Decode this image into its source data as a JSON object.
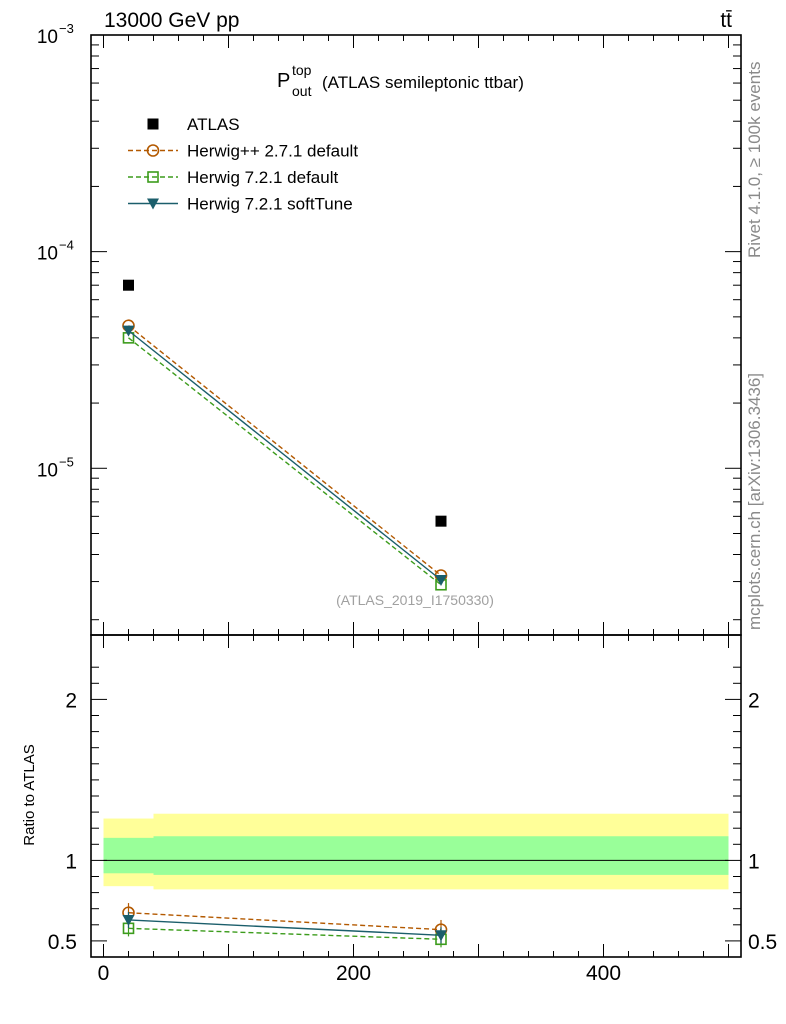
{
  "chart_data": [
    {
      "type": "scatter",
      "panel": "main",
      "title": "(ATLAS semileptonic ttbar)",
      "observable": {
        "base": "P",
        "sup": "top",
        "sub": "out"
      },
      "header_left": "13000 GeV pp",
      "header_right": "tt̄",
      "watermark": "(ATLAS_2019_I1750330)",
      "yscale": "log",
      "ylim": [
        1.7e-06,
        0.001
      ],
      "xlim": [
        -10,
        510
      ],
      "ytick_labels": [
        {
          "value": 0.001,
          "base": "10",
          "exp": "−3"
        },
        {
          "value": 0.0001,
          "base": "10",
          "exp": "−4"
        },
        {
          "value": 1e-05,
          "base": "10",
          "exp": "−5"
        }
      ],
      "series": [
        {
          "name": "ATLAS",
          "marker": "square-filled",
          "color": "#000000",
          "line": "none",
          "x": [
            20,
            270
          ],
          "y": [
            7e-05,
            5.7e-06
          ]
        },
        {
          "name": "Herwig++ 2.7.1 default",
          "marker": "circle-open",
          "color": "#b35900",
          "line": "dashed",
          "x": [
            20,
            270
          ],
          "y": [
            4.55e-05,
            3.2e-06
          ]
        },
        {
          "name": "Herwig 7.2.1 default",
          "marker": "square-open",
          "color": "#3c9c1c",
          "line": "dashed",
          "x": [
            20,
            270
          ],
          "y": [
            4e-05,
            2.9e-06
          ]
        },
        {
          "name": "Herwig 7.2.1 softTune",
          "marker": "triangle-down-filled",
          "color": "#1b5e6b",
          "line": "solid",
          "x": [
            20,
            270
          ],
          "y": [
            4.32e-05,
            3.05e-06
          ]
        }
      ]
    },
    {
      "type": "scatter",
      "panel": "ratio",
      "ylabel": "Ratio to ATLAS",
      "xlim": [
        -10,
        510
      ],
      "ylim": [
        0.4,
        2.4
      ],
      "xticks": [
        0,
        200,
        400
      ],
      "yticks": [
        0.5,
        1,
        2
      ],
      "bands": {
        "bins": [
          [
            0,
            40
          ],
          [
            40,
            500
          ]
        ],
        "outer": {
          "color": "#ffff99",
          "lower": [
            0.84,
            0.82
          ],
          "upper": [
            1.26,
            1.29
          ]
        },
        "inner": {
          "color": "#99ff99",
          "lower": [
            0.92,
            0.91
          ],
          "upper": [
            1.14,
            1.15
          ]
        }
      },
      "series": [
        {
          "name": "Herwig++ 2.7.1 default",
          "color": "#b35900",
          "marker": "circle-open",
          "line": "dashed",
          "x": [
            20,
            270
          ],
          "y": [
            0.675,
            0.57
          ],
          "err": [
            0.06,
            0.06
          ]
        },
        {
          "name": "Herwig 7.2.1 default",
          "color": "#3c9c1c",
          "marker": "square-open",
          "line": "dashed",
          "x": [
            20,
            270
          ],
          "y": [
            0.578,
            0.51
          ],
          "err": [
            0.05,
            0.05
          ]
        },
        {
          "name": "Herwig 7.2.1 softTune",
          "color": "#1b5e6b",
          "marker": "triangle-down-filled",
          "line": "solid",
          "x": [
            20,
            270
          ],
          "y": [
            0.63,
            0.535
          ],
          "err": [
            0.05,
            0.05
          ]
        }
      ]
    }
  ],
  "side_labels": {
    "rivet": "Rivet 4.1.0, ≥ 100k events",
    "mcplots": "mcplots.cern.ch [arXiv:1306.3436]"
  }
}
